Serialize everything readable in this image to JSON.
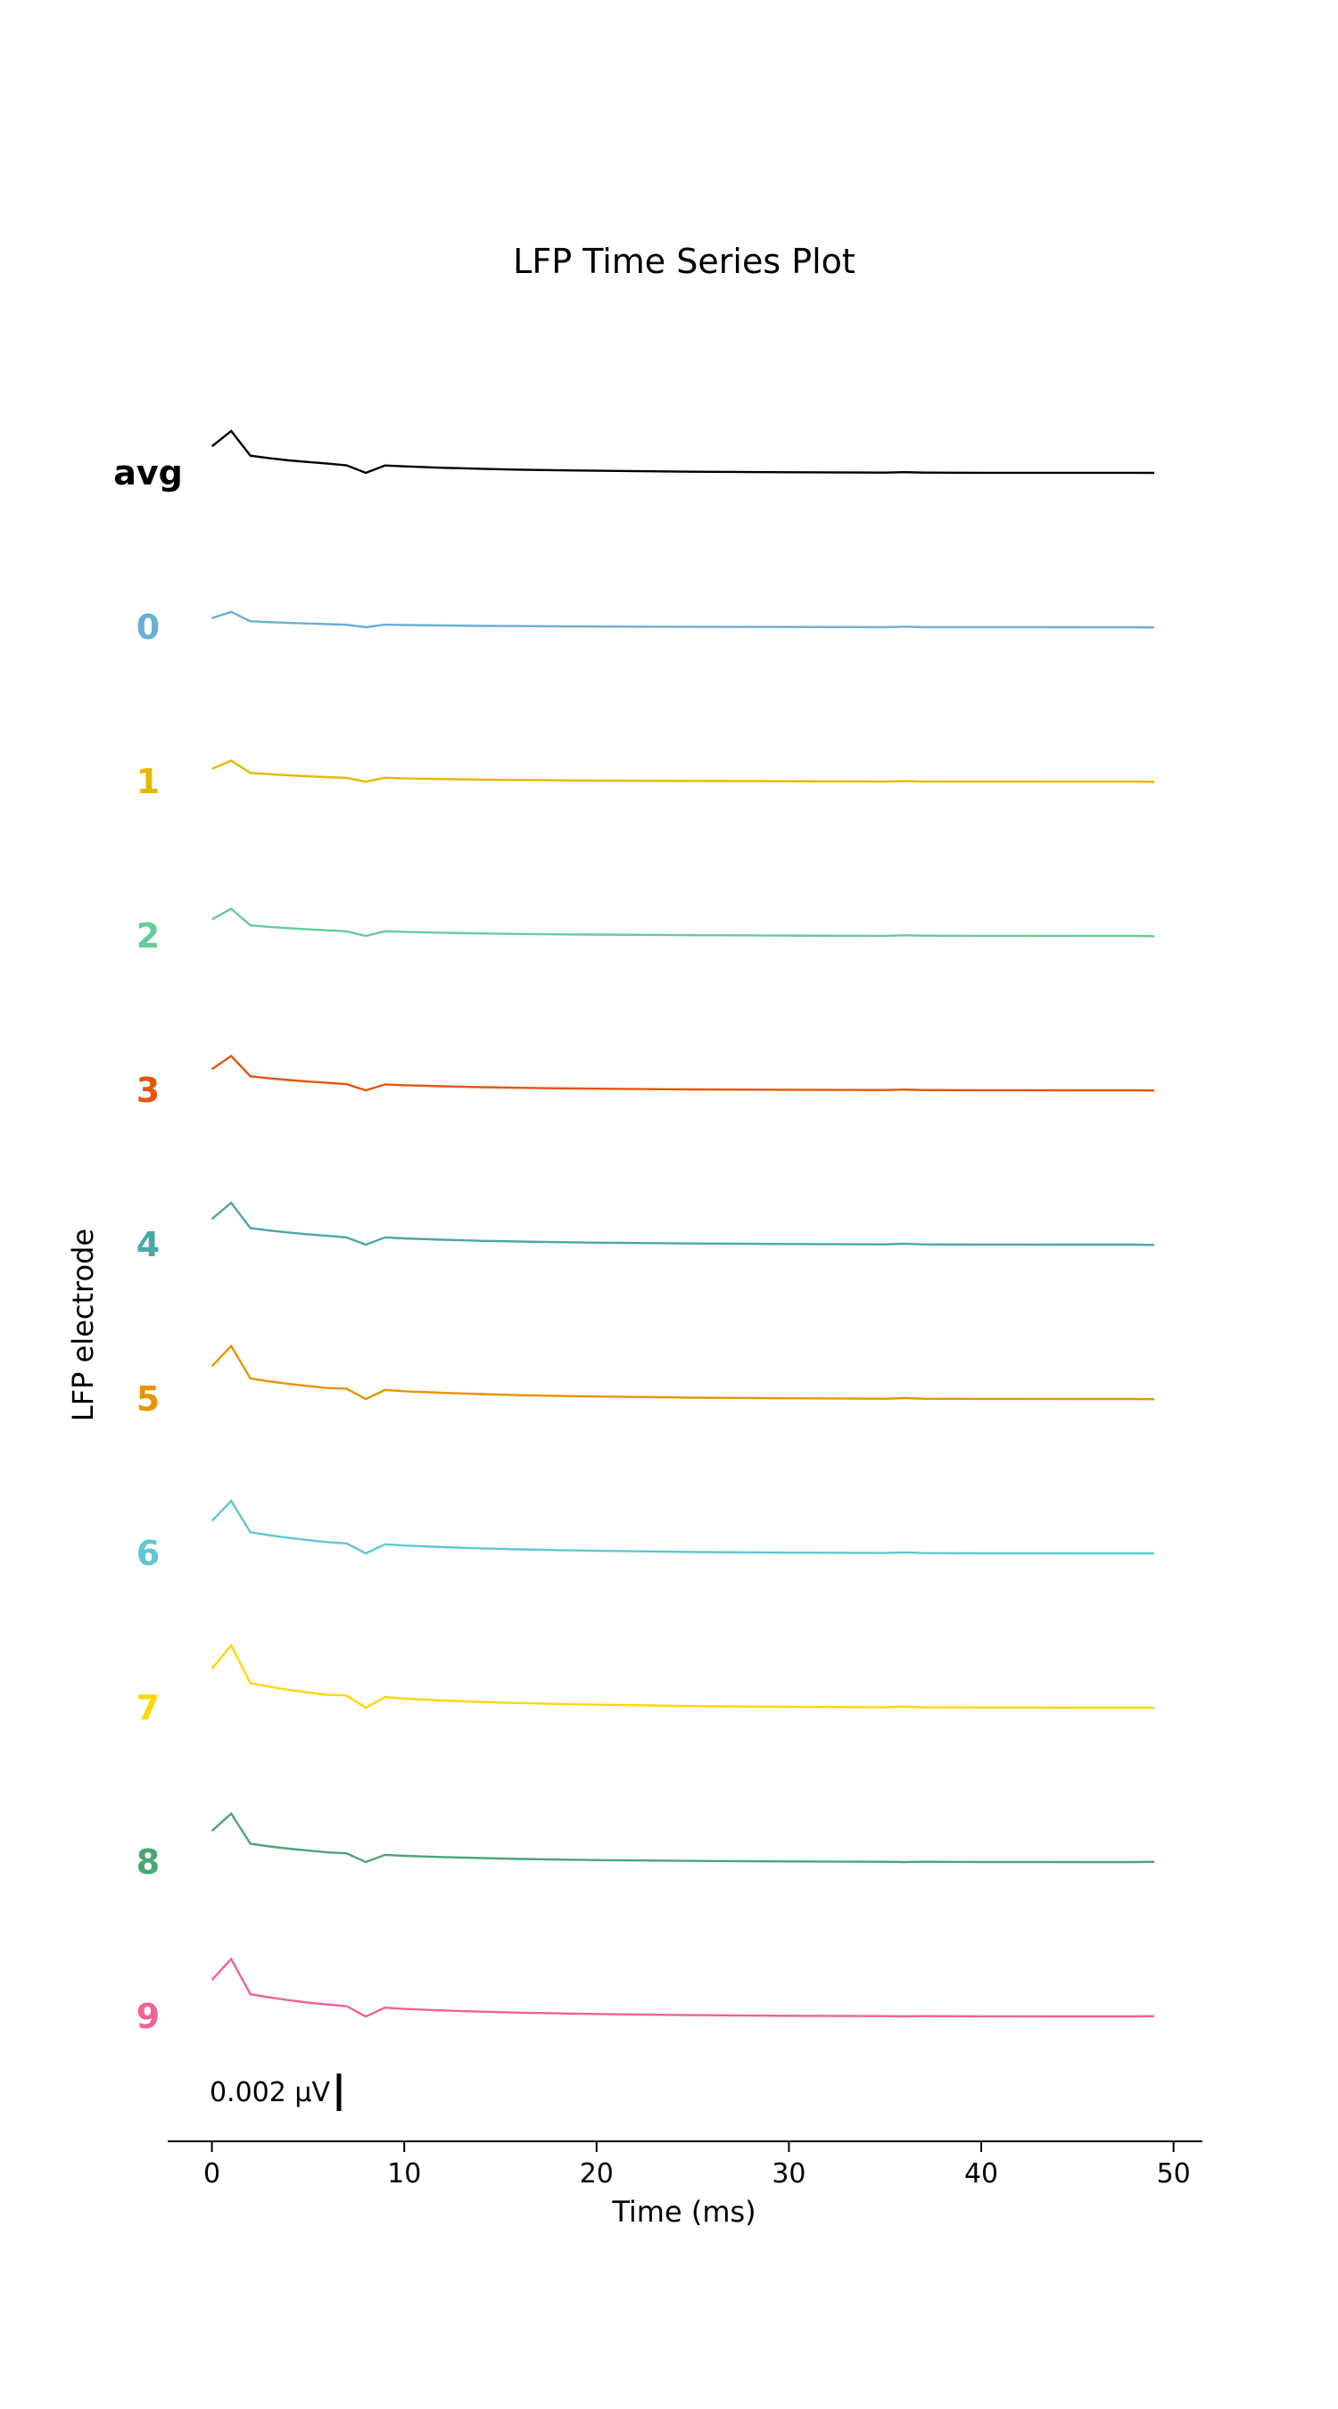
{
  "chart_data": {
    "type": "line",
    "title": "LFP Time Series Plot",
    "xlabel": "Time (ms)",
    "ylabel": "LFP electrode",
    "xlim": [
      -2.3,
      51.5
    ],
    "xticks": [
      0,
      10,
      20,
      30,
      40,
      50
    ],
    "scalebar": {
      "label": "0.002 μV",
      "value": 0.002
    },
    "x": [
      0,
      1,
      2,
      3,
      4,
      5,
      6,
      7,
      8,
      9,
      10,
      12,
      14,
      16,
      18,
      20,
      25,
      30,
      35,
      36,
      37,
      40,
      45,
      48,
      49
    ],
    "series": [
      {
        "name": "avg",
        "color": "#000000",
        "values": [
          0.00213,
          0.00335,
          0.00138,
          0.00117,
          0.001,
          0.00087,
          0.00074,
          0.00061,
          0.0,
          0.00059,
          0.00052,
          0.00041,
          0.00033,
          0.00026,
          0.00021,
          0.00017,
          9e-05,
          5e-05,
          2e-05,
          6e-05,
          2e-05,
          1e-05,
          1e-05,
          1e-05,
          0.0
        ]
      },
      {
        "name": "0",
        "color": "#6baed6",
        "values": [
          0.00073,
          0.00123,
          0.00048,
          0.00041,
          0.00035,
          0.0003,
          0.00025,
          0.0002,
          0.0,
          0.00021,
          0.00018,
          0.00014,
          0.00011,
          9e-05,
          7e-05,
          6e-05,
          3e-05,
          2e-05,
          1e-05,
          4e-05,
          1e-05,
          1e-05,
          0.0,
          0.0,
          -2e-05
        ]
      },
      {
        "name": "1",
        "color": "#e6b800",
        "values": [
          0.00102,
          0.00167,
          0.00069,
          0.00059,
          0.0005,
          0.00043,
          0.00036,
          0.00029,
          0.0,
          0.00031,
          0.00026,
          0.0002,
          0.00016,
          0.00013,
          0.0001,
          8e-05,
          5e-05,
          3e-05,
          1e-05,
          4e-05,
          1e-05,
          1e-05,
          0.0,
          0.0,
          -2e-05
        ]
      },
      {
        "name": "2",
        "color": "#66cc99",
        "values": [
          0.00133,
          0.00218,
          0.00085,
          0.00072,
          0.00062,
          0.00053,
          0.00045,
          0.00037,
          0.0,
          0.00038,
          0.00033,
          0.00026,
          0.0002,
          0.00016,
          0.00013,
          0.00011,
          6e-05,
          3e-05,
          1e-05,
          5e-05,
          2e-05,
          1e-05,
          0.0,
          0.0,
          -2e-05
        ]
      },
      {
        "name": "3",
        "color": "#e6550d",
        "values": [
          0.00169,
          0.00274,
          0.00112,
          0.00096,
          0.00082,
          0.0007,
          0.0006,
          0.00049,
          0.0,
          0.00047,
          0.00041,
          0.00032,
          0.00025,
          0.0002,
          0.00016,
          0.00013,
          7e-05,
          4e-05,
          2e-05,
          6e-05,
          2e-05,
          1e-05,
          0.0,
          0.0,
          -2e-05
        ]
      },
      {
        "name": "4",
        "color": "#4ca6a6",
        "values": [
          0.00206,
          0.00335,
          0.00132,
          0.00113,
          0.00097,
          0.00083,
          0.00071,
          0.00058,
          0.0,
          0.00058,
          0.0005,
          0.00039,
          0.00031,
          0.00025,
          0.0002,
          0.00016,
          9e-05,
          5e-05,
          2e-05,
          7e-05,
          2e-05,
          1e-05,
          0.0,
          0.0,
          -2e-05
        ]
      },
      {
        "name": "5",
        "color": "#e69500",
        "values": [
          0.00262,
          0.00424,
          0.00165,
          0.00141,
          0.00121,
          0.00104,
          0.00088,
          0.00083,
          0.0,
          0.00072,
          0.00062,
          0.00049,
          0.00039,
          0.00031,
          0.00025,
          0.0002,
          0.00011,
          6e-05,
          2e-05,
          8e-05,
          2e-05,
          1e-05,
          0.0,
          0.0,
          -2e-05
        ]
      },
      {
        "name": "6",
        "color": "#5ec8d0",
        "values": [
          0.00259,
          0.0042,
          0.00169,
          0.00144,
          0.00124,
          0.00106,
          0.0009,
          0.0008,
          0.0,
          0.00073,
          0.00063,
          0.0005,
          0.0004,
          0.00032,
          0.00026,
          0.00021,
          0.00011,
          6e-05,
          3e-05,
          8e-05,
          2e-05,
          1e-05,
          0.0,
          0.0,
          0.0
        ]
      },
      {
        "name": "7",
        "color": "#ffd700",
        "values": [
          0.00313,
          0.005,
          0.00197,
          0.00168,
          0.00143,
          0.00122,
          0.00104,
          0.00098,
          0.0,
          0.00085,
          0.00073,
          0.00058,
          0.00046,
          0.00037,
          0.0003,
          0.00024,
          0.00013,
          7e-05,
          3e-05,
          9e-05,
          2e-05,
          1e-05,
          0.0,
          0.0,
          0.0
        ]
      },
      {
        "name": "8",
        "color": "#4ca672",
        "values": [
          0.00249,
          0.00388,
          0.00147,
          0.00125,
          0.00107,
          0.00092,
          0.00078,
          0.0007,
          0.0,
          0.00058,
          0.0005,
          0.0004,
          0.00032,
          0.00025,
          0.0002,
          0.00016,
          9e-05,
          5e-05,
          2e-05,
          0.0,
          2e-05,
          1e-05,
          0.0,
          0.0,
          2e-05
        ]
      },
      {
        "name": "9",
        "color": "#f06292",
        "values": [
          0.00292,
          0.0046,
          0.00178,
          0.00152,
          0.0013,
          0.00111,
          0.00095,
          0.00082,
          0.0,
          0.0007,
          0.0006,
          0.00048,
          0.00038,
          0.0003,
          0.00024,
          0.00019,
          0.0001,
          5e-05,
          2e-05,
          0.0,
          2e-05,
          1e-05,
          0.0,
          0.0,
          2e-05
        ]
      }
    ]
  }
}
